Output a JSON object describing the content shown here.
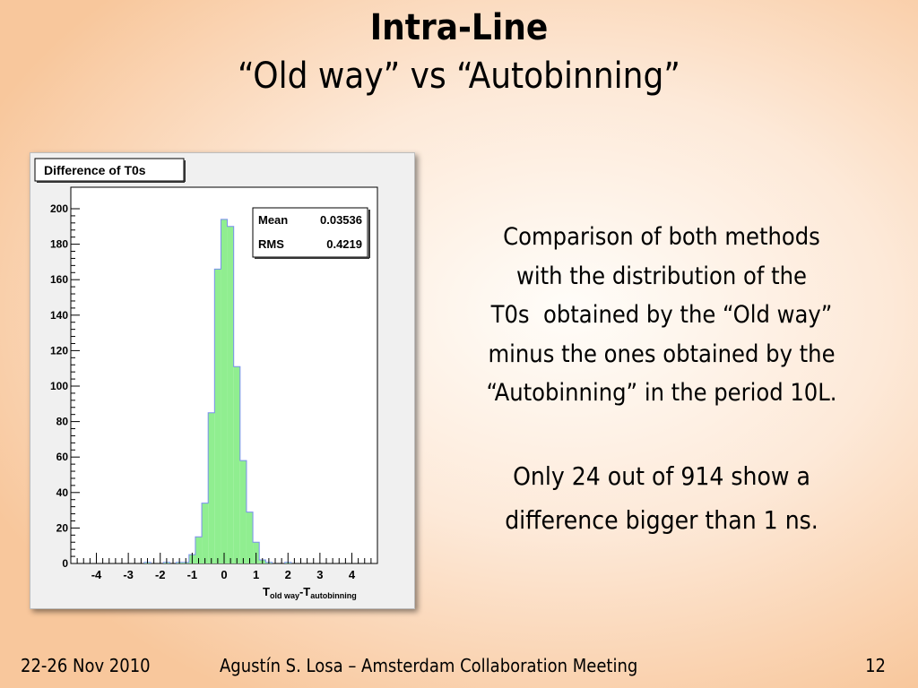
{
  "slide": {
    "title": "Intra-Line",
    "subtitle": "“Old way” vs “Autobinning”",
    "description_lines": [
      "Comparison of both methods",
      "with the distribution of the",
      "T0s  obtained by the “Old way”",
      "minus the ones obtained by the",
      "“Autobinning” in the period 10L."
    ],
    "summary_lines": [
      "Only 24 out of 914 show a",
      "difference bigger than 1 ns."
    ]
  },
  "footer": {
    "date": "22-26 Nov 2010",
    "author_event": "Agustín S. Losa – Amsterdam Collaboration Meeting",
    "page_number": "12"
  },
  "chart_data": {
    "type": "bar",
    "title": "Difference of T0s",
    "stats": {
      "mean_label": "Mean",
      "mean_value": "0.03536",
      "rms_label": "RMS",
      "rms_value": "0.4219"
    },
    "xlabel": {
      "main": "T",
      "sub1": "old way",
      "dash": "-T",
      "sub2": "autobinning"
    },
    "xlim": [
      -4.8,
      4.8
    ],
    "ylim": [
      0,
      200
    ],
    "bin_width": 0.2,
    "x_ticks": [
      -4,
      -3,
      -2,
      -1,
      0,
      1,
      2,
      3,
      4
    ],
    "y_ticks": [
      0,
      20,
      40,
      60,
      80,
      100,
      120,
      140,
      160,
      180,
      200
    ],
    "bins": [
      {
        "x": -2.4,
        "y": 0.6
      },
      {
        "x": -1.8,
        "y": 0.6
      },
      {
        "x": -1.4,
        "y": 0.6
      },
      {
        "x": -1.2,
        "y": 0.6
      },
      {
        "x": -1.0,
        "y": 5
      },
      {
        "x": -0.8,
        "y": 15
      },
      {
        "x": -0.6,
        "y": 34
      },
      {
        "x": -0.4,
        "y": 85
      },
      {
        "x": -0.2,
        "y": 166
      },
      {
        "x": 0.0,
        "y": 194
      },
      {
        "x": 0.2,
        "y": 190
      },
      {
        "x": 0.4,
        "y": 111
      },
      {
        "x": 0.6,
        "y": 58
      },
      {
        "x": 0.8,
        "y": 29
      },
      {
        "x": 1.0,
        "y": 12
      },
      {
        "x": 1.2,
        "y": 2
      },
      {
        "x": 1.4,
        "y": 0.6
      },
      {
        "x": 2.0,
        "y": 0.6
      }
    ],
    "fill_color": "#90ee90",
    "stroke_color": "#7a8ef0",
    "grid": false,
    "legend": "top-right stats box"
  }
}
